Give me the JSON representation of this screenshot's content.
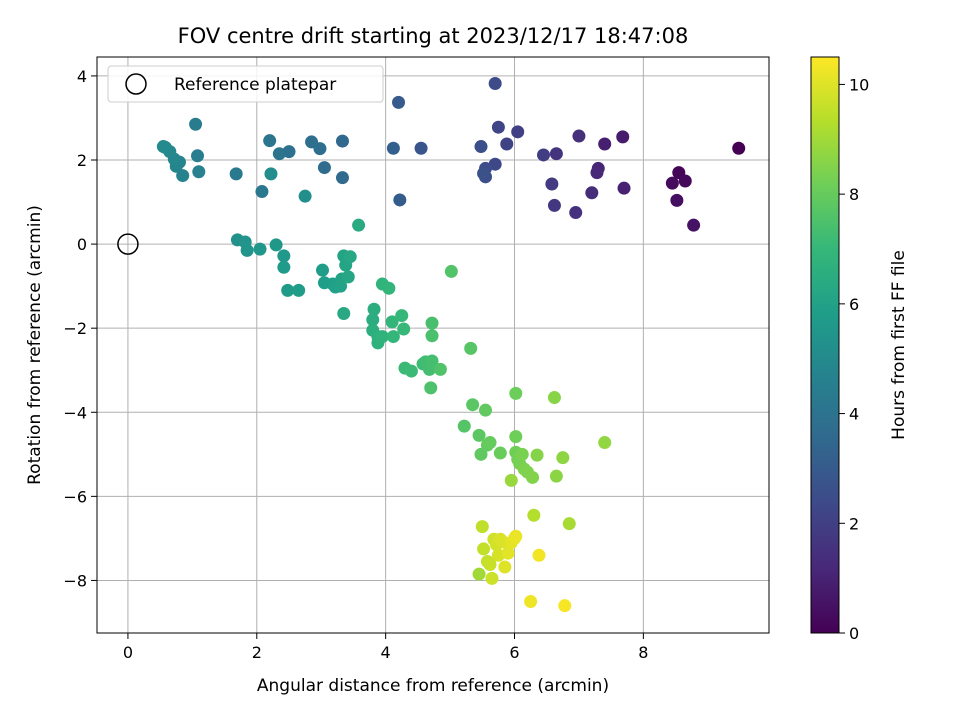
{
  "chart_data": {
    "type": "scatter",
    "title": "FOV centre drift starting at 2023/12/17 18:47:08",
    "xlabel": "Angular distance from reference (arcmin)",
    "ylabel": "Rotation from reference (arcmin)",
    "xlim": [
      -0.48,
      9.95
    ],
    "ylim": [
      -9.25,
      4.45
    ],
    "x_ticks": [
      0,
      2,
      4,
      6,
      8
    ],
    "y_ticks": [
      -8,
      -6,
      -4,
      -2,
      0,
      2,
      4
    ],
    "grid": true,
    "legend": {
      "placement": "top-left",
      "entries": [
        "Reference platepar"
      ]
    },
    "reference_point": {
      "x": 0,
      "y": 0,
      "label": "Reference platepar"
    },
    "colorbar": {
      "label": "Hours from first FF file",
      "range": [
        0,
        10.5
      ],
      "ticks": [
        0,
        2,
        4,
        6,
        8,
        10
      ],
      "colormap": [
        "#440154",
        "#482878",
        "#3e4989",
        "#31688e",
        "#26828e",
        "#1f9e89",
        "#35b779",
        "#6ece58",
        "#b5de2b",
        "#fde725"
      ]
    },
    "points": [
      [
        9.48,
        2.28,
        0.0
      ],
      [
        8.55,
        1.7,
        0.1
      ],
      [
        8.65,
        1.5,
        0.2
      ],
      [
        8.45,
        1.45,
        0.3
      ],
      [
        8.52,
        1.04,
        0.4
      ],
      [
        8.78,
        0.45,
        0.5
      ],
      [
        7.68,
        2.55,
        0.8
      ],
      [
        7.4,
        2.38,
        0.9
      ],
      [
        7.7,
        1.33,
        1.0
      ],
      [
        7.3,
        1.8,
        1.1
      ],
      [
        7.28,
        1.7,
        1.2
      ],
      [
        7.2,
        1.22,
        1.3
      ],
      [
        7.0,
        2.57,
        1.4
      ],
      [
        6.95,
        0.75,
        1.5
      ],
      [
        6.65,
        2.15,
        1.6
      ],
      [
        6.62,
        0.92,
        1.7
      ],
      [
        6.58,
        1.43,
        1.8
      ],
      [
        6.45,
        2.12,
        1.9
      ],
      [
        6.05,
        2.67,
        2.0
      ],
      [
        5.88,
        2.38,
        2.1
      ],
      [
        5.75,
        2.78,
        2.2
      ],
      [
        5.7,
        1.9,
        2.3
      ],
      [
        5.7,
        3.82,
        2.4
      ],
      [
        5.55,
        1.8,
        2.5
      ],
      [
        5.55,
        1.6,
        2.55
      ],
      [
        5.48,
        2.32,
        2.6
      ],
      [
        5.52,
        1.68,
        2.65
      ],
      [
        4.55,
        2.28,
        2.8
      ],
      [
        4.2,
        3.37,
        3.0
      ],
      [
        4.22,
        1.05,
        3.1
      ],
      [
        4.12,
        2.28,
        3.2
      ],
      [
        3.33,
        2.45,
        3.5
      ],
      [
        3.33,
        1.58,
        3.6
      ],
      [
        3.05,
        1.82,
        3.7
      ],
      [
        2.98,
        2.27,
        3.75
      ],
      [
        2.85,
        2.43,
        3.8
      ],
      [
        2.5,
        2.2,
        3.9
      ],
      [
        2.35,
        2.15,
        4.0
      ],
      [
        2.2,
        2.46,
        4.1
      ],
      [
        2.08,
        1.25,
        4.2
      ],
      [
        1.68,
        1.67,
        4.3
      ],
      [
        1.05,
        2.85,
        4.4
      ],
      [
        1.08,
        2.1,
        4.5
      ],
      [
        1.1,
        1.72,
        4.6
      ],
      [
        0.85,
        1.63,
        4.7
      ],
      [
        0.8,
        1.95,
        4.75
      ],
      [
        0.75,
        1.85,
        4.8
      ],
      [
        0.72,
        2.02,
        4.85
      ],
      [
        0.65,
        2.2,
        4.9
      ],
      [
        0.58,
        2.3,
        4.95
      ],
      [
        0.55,
        2.32,
        5.0
      ],
      [
        2.22,
        1.67,
        5.1
      ],
      [
        2.75,
        1.14,
        5.2
      ],
      [
        1.7,
        0.1,
        5.3
      ],
      [
        1.82,
        0.05,
        5.4
      ],
      [
        1.85,
        -0.15,
        5.45
      ],
      [
        2.05,
        -0.12,
        5.5
      ],
      [
        2.3,
        -0.02,
        5.55
      ],
      [
        2.42,
        -0.28,
        5.6
      ],
      [
        2.42,
        -0.55,
        5.65
      ],
      [
        2.48,
        -1.1,
        5.7
      ],
      [
        2.65,
        -1.1,
        5.75
      ],
      [
        3.02,
        -0.62,
        5.8
      ],
      [
        3.05,
        -0.92,
        5.85
      ],
      [
        3.18,
        -0.95,
        5.9
      ],
      [
        3.22,
        -1.02,
        5.95
      ],
      [
        3.3,
        -1.0,
        6.0
      ],
      [
        3.32,
        -0.83,
        6.05
      ],
      [
        3.35,
        -0.28,
        6.1
      ],
      [
        3.38,
        -0.5,
        6.15
      ],
      [
        3.42,
        -0.78,
        6.2
      ],
      [
        3.45,
        -0.3,
        6.25
      ],
      [
        3.35,
        -1.65,
        6.3
      ],
      [
        3.58,
        0.45,
        6.4
      ],
      [
        3.8,
        -1.8,
        6.5
      ],
      [
        3.82,
        -1.55,
        6.55
      ],
      [
        3.8,
        -2.05,
        6.6
      ],
      [
        3.88,
        -2.2,
        6.65
      ],
      [
        3.88,
        -2.35,
        6.7
      ],
      [
        3.95,
        -2.2,
        6.75
      ],
      [
        3.95,
        -0.95,
        6.8
      ],
      [
        4.05,
        -1.05,
        6.85
      ],
      [
        4.1,
        -1.85,
        6.9
      ],
      [
        4.12,
        -2.2,
        6.95
      ],
      [
        4.25,
        -1.7,
        7.0
      ],
      [
        4.28,
        -2.02,
        7.05
      ],
      [
        4.3,
        -2.95,
        7.1
      ],
      [
        4.4,
        -3.02,
        7.15
      ],
      [
        4.58,
        -2.85,
        7.2
      ],
      [
        4.62,
        -2.8,
        7.25
      ],
      [
        4.68,
        -2.98,
        7.3
      ],
      [
        4.72,
        -2.78,
        7.35
      ],
      [
        4.72,
        -1.88,
        7.4
      ],
      [
        4.72,
        -2.18,
        7.45
      ],
      [
        4.7,
        -3.42,
        7.5
      ],
      [
        4.85,
        -2.98,
        7.55
      ],
      [
        5.02,
        -0.65,
        7.6
      ],
      [
        5.22,
        -4.33,
        7.65
      ],
      [
        5.32,
        -2.48,
        7.7
      ],
      [
        5.35,
        -3.82,
        7.75
      ],
      [
        5.45,
        -4.55,
        7.8
      ],
      [
        5.48,
        -5.0,
        7.85
      ],
      [
        5.55,
        -3.95,
        7.9
      ],
      [
        5.58,
        -4.78,
        7.95
      ],
      [
        5.62,
        -4.72,
        8.0
      ],
      [
        5.78,
        -4.97,
        8.05
      ],
      [
        6.02,
        -3.55,
        8.1
      ],
      [
        6.02,
        -4.58,
        8.15
      ],
      [
        6.02,
        -4.95,
        8.2
      ],
      [
        6.05,
        -5.12,
        8.25
      ],
      [
        6.08,
        -5.22,
        8.3
      ],
      [
        6.12,
        -5.0,
        8.35
      ],
      [
        6.15,
        -5.35,
        8.4
      ],
      [
        6.2,
        -5.42,
        8.45
      ],
      [
        6.28,
        -5.55,
        8.5
      ],
      [
        6.35,
        -5.02,
        8.55
      ],
      [
        6.62,
        -3.65,
        8.6
      ],
      [
        6.65,
        -5.52,
        8.65
      ],
      [
        6.75,
        -5.08,
        8.7
      ],
      [
        7.4,
        -4.72,
        8.75
      ],
      [
        5.95,
        -5.62,
        8.85
      ],
      [
        6.3,
        -6.45,
        9.3
      ],
      [
        6.85,
        -6.65,
        9.1
      ],
      [
        5.45,
        -7.85,
        9.0
      ],
      [
        5.5,
        -6.72,
        9.5
      ],
      [
        5.52,
        -7.25,
        9.55
      ],
      [
        5.58,
        -7.55,
        9.6
      ],
      [
        5.62,
        -7.62,
        9.65
      ],
      [
        5.65,
        -7.95,
        9.7
      ],
      [
        5.68,
        -7.02,
        9.75
      ],
      [
        5.72,
        -7.15,
        9.8
      ],
      [
        5.75,
        -7.4,
        9.85
      ],
      [
        5.78,
        -7.02,
        9.9
      ],
      [
        5.82,
        -7.08,
        9.95
      ],
      [
        5.85,
        -7.68,
        10.0
      ],
      [
        5.9,
        -7.35,
        10.05
      ],
      [
        5.95,
        -7.1,
        10.1
      ],
      [
        6.0,
        -7.0,
        10.15
      ],
      [
        6.02,
        -6.95,
        10.2
      ],
      [
        6.25,
        -8.5,
        10.25
      ],
      [
        6.38,
        -7.4,
        10.3
      ],
      [
        6.78,
        -8.6,
        10.4
      ]
    ]
  }
}
